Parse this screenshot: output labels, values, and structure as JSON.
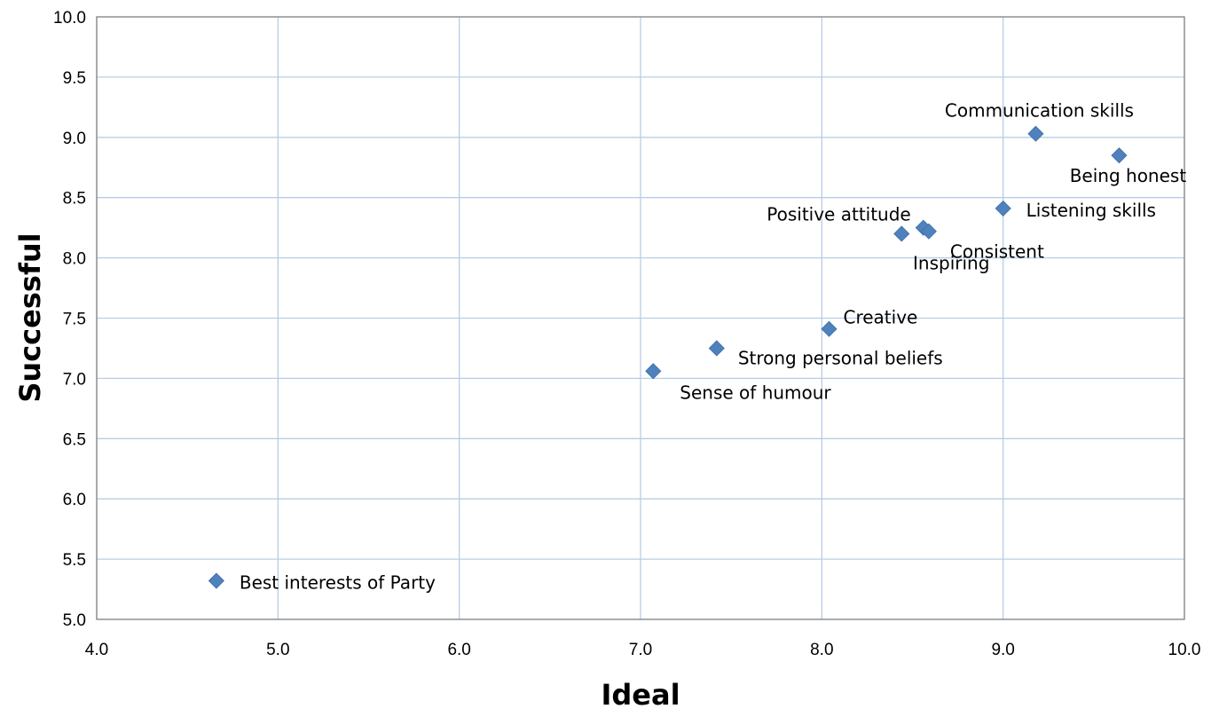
{
  "chart_data": {
    "type": "scatter",
    "xlabel": "Ideal",
    "ylabel": "Successful",
    "xlim": [
      4.0,
      10.0
    ],
    "ylim": [
      5.0,
      10.0
    ],
    "xticks": [
      "4.0",
      "5.0",
      "6.0",
      "7.0",
      "8.0",
      "9.0",
      "10.0"
    ],
    "yticks": [
      "5.0",
      "5.5",
      "6.0",
      "6.5",
      "7.0",
      "7.5",
      "8.0",
      "8.5",
      "9.0",
      "9.5",
      "10.0"
    ],
    "grid": true,
    "marker": "diamond",
    "marker_color": "#4f81bd",
    "points": [
      {
        "label": "Communication skills",
        "x": 9.18,
        "y": 9.03
      },
      {
        "label": "Being honest",
        "x": 9.64,
        "y": 8.85
      },
      {
        "label": "Listening skills",
        "x": 9.0,
        "y": 8.41
      },
      {
        "label": "Positive attitude",
        "x": 8.56,
        "y": 8.25
      },
      {
        "label": "Consistent",
        "x": 8.59,
        "y": 8.22
      },
      {
        "label": "Inspiring",
        "x": 8.44,
        "y": 8.2
      },
      {
        "label": "Creative",
        "x": 8.04,
        "y": 7.41
      },
      {
        "label": "Strong personal beliefs",
        "x": 7.42,
        "y": 7.25
      },
      {
        "label": "Sense of humour",
        "x": 7.07,
        "y": 7.06
      },
      {
        "label": "Best interests of Party",
        "x": 4.66,
        "y": 5.32
      }
    ]
  }
}
